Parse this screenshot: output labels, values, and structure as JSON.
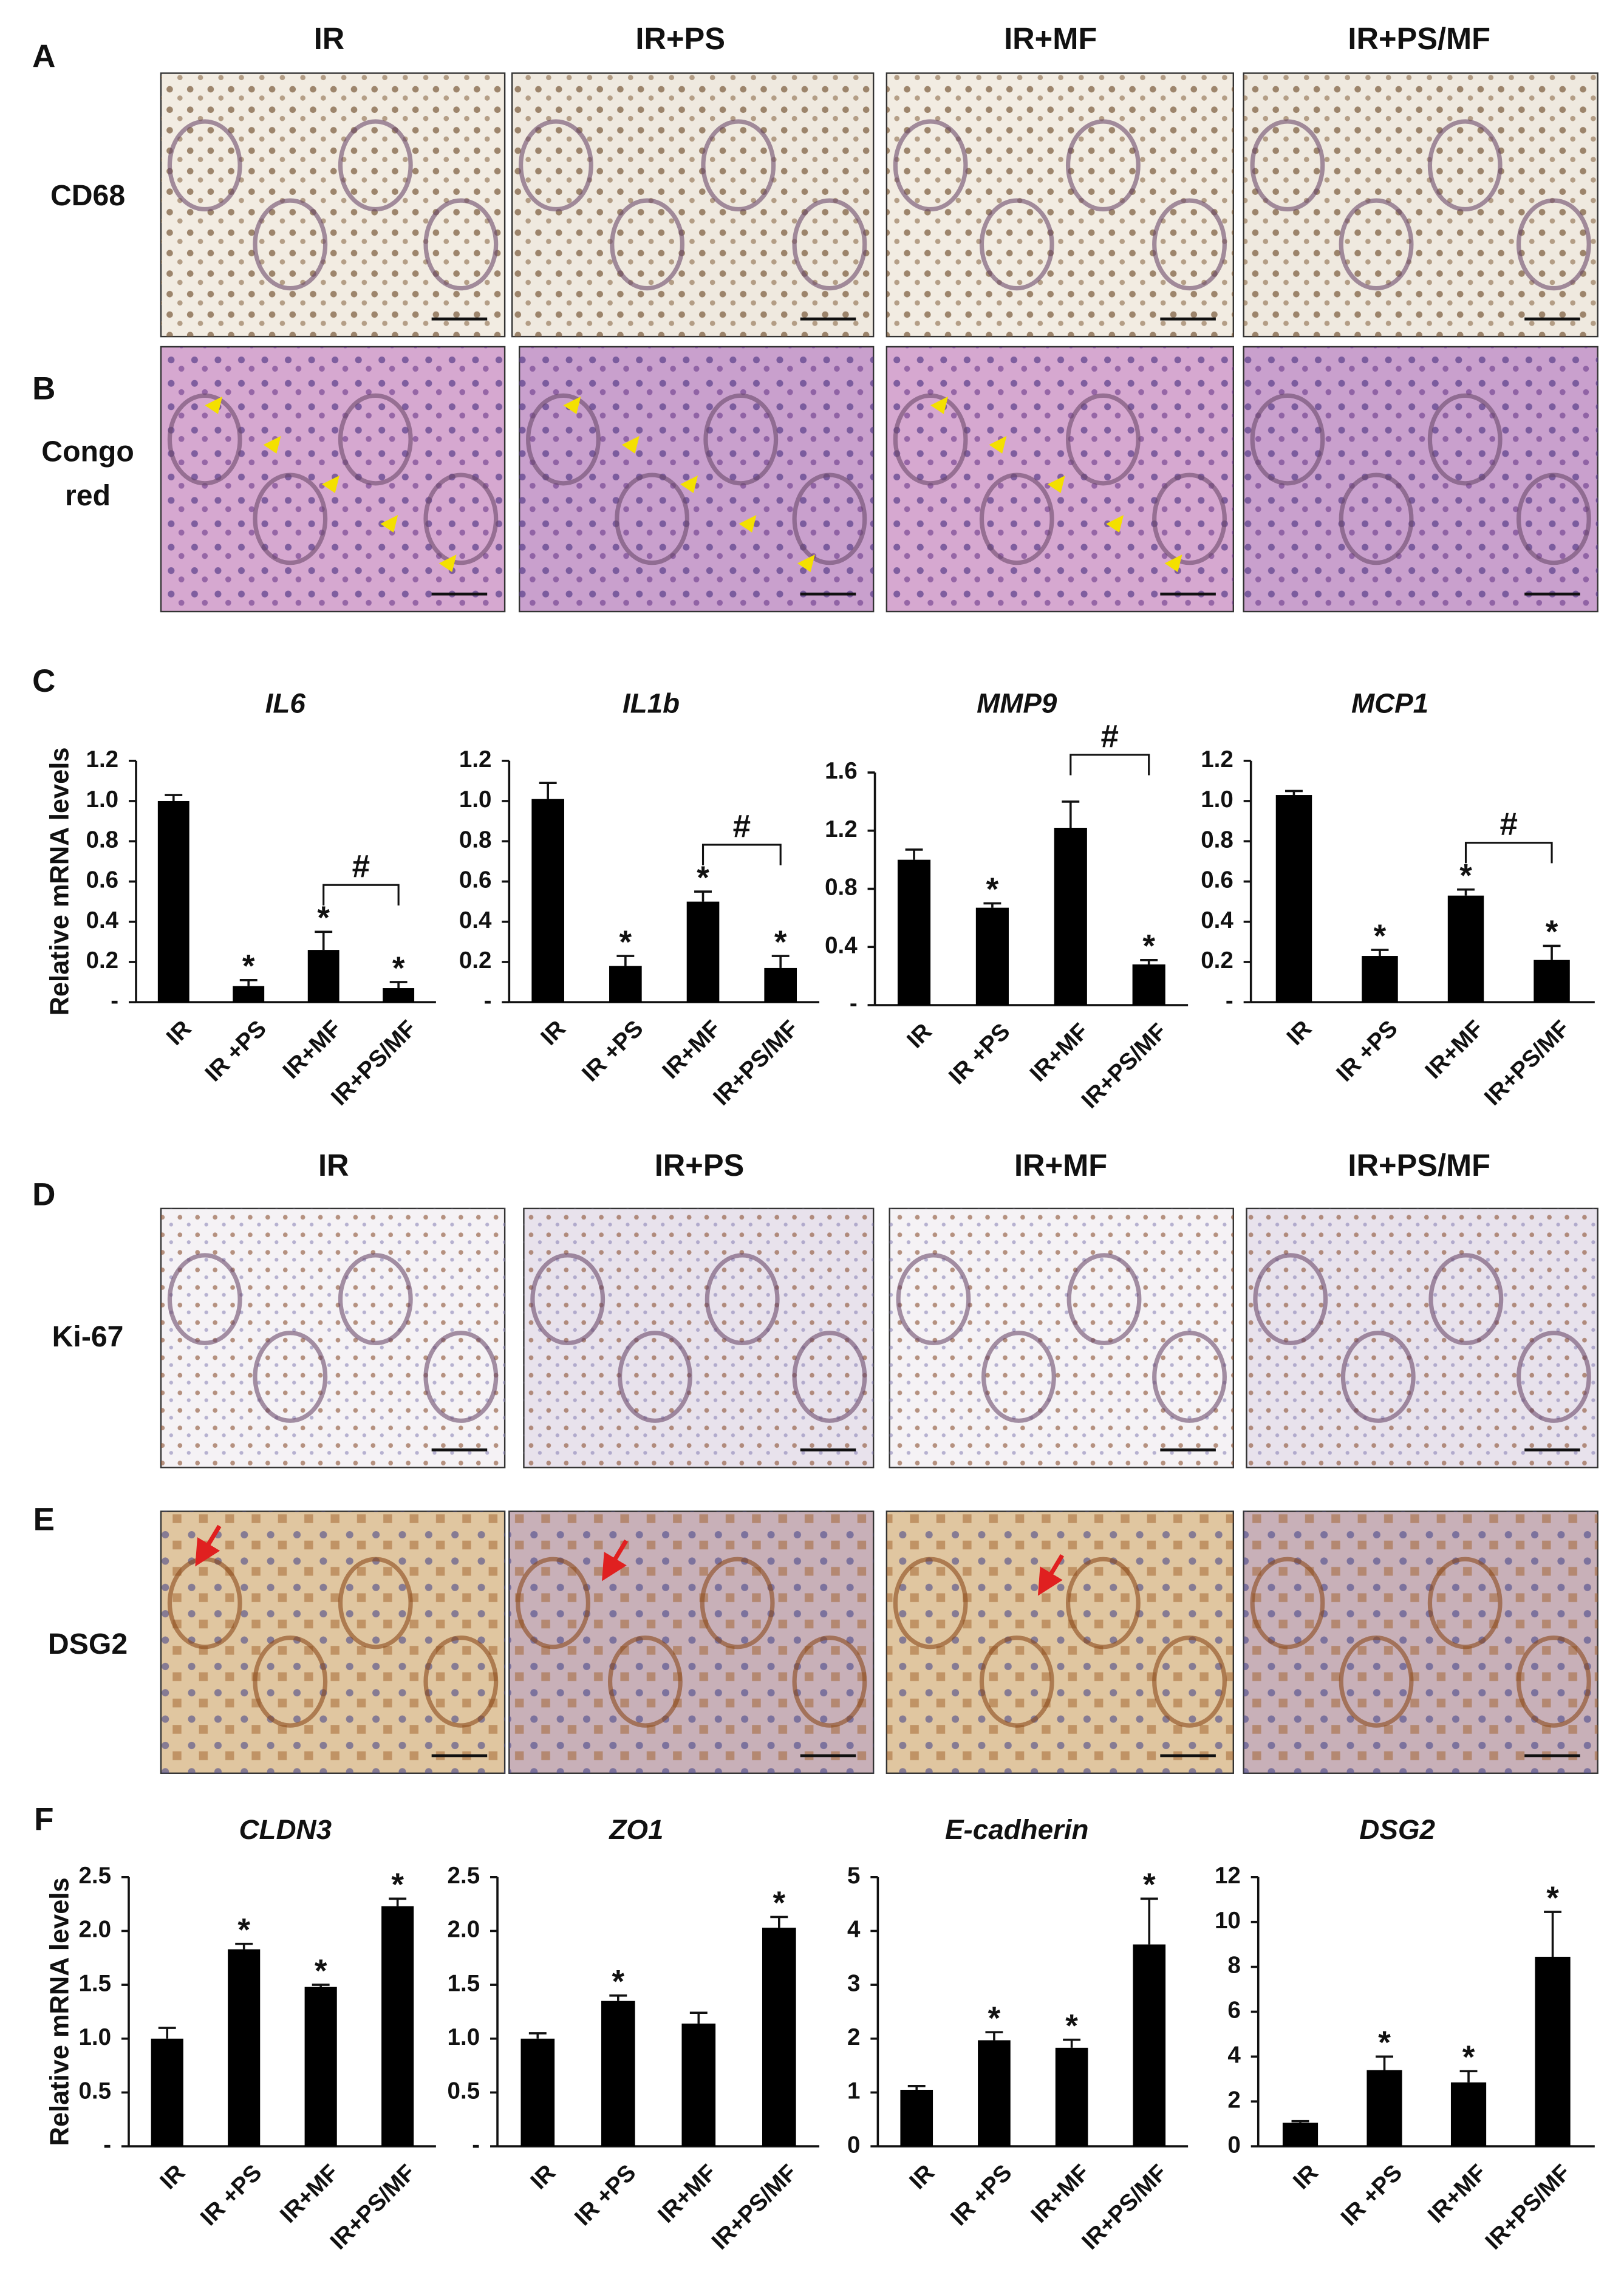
{
  "panels": {
    "A": {
      "label": "A",
      "headers": [
        "IR",
        "IR+PS",
        "IR+MF",
        "IR+PS/MF"
      ],
      "stain": [
        "CD68"
      ]
    },
    "B": {
      "label": "B",
      "stain": [
        "Congo",
        "red"
      ]
    },
    "C": {
      "label": "C"
    },
    "D": {
      "label": "D",
      "headers": [
        "IR",
        "IR+PS",
        "IR+MF",
        "IR+PS/MF"
      ],
      "stain": [
        "Ki-67"
      ]
    },
    "E": {
      "label": "E",
      "stain": [
        "DSG2"
      ]
    },
    "F": {
      "label": "F"
    }
  },
  "chart_data": [
    {
      "type": "bar",
      "title": "IL6",
      "y_label": "Relative mRNA levels",
      "categories": [
        "IR",
        "IR +PS",
        "IR+MF",
        "IR+PS/MF"
      ],
      "values": [
        1.0,
        0.08,
        0.26,
        0.07
      ],
      "errors": [
        0.03,
        0.03,
        0.09,
        0.03
      ],
      "significance": [
        null,
        "*",
        "*",
        "*"
      ],
      "bracket": {
        "label": "#",
        "between": [
          "IR+MF",
          "IR+PS/MF"
        ]
      },
      "color": "#000000",
      "ylim": [
        0,
        1.2
      ],
      "yticks": [
        {
          "value": 0,
          "label": "-"
        },
        0.2,
        0.4,
        0.6,
        0.8,
        {
          "value": 1,
          "label": "1.0"
        },
        1.2
      ]
    },
    {
      "type": "bar",
      "title": "IL1b",
      "categories": [
        "IR",
        "IR +PS",
        "IR+MF",
        "IR+PS/MF"
      ],
      "values": [
        1.01,
        0.18,
        0.5,
        0.17
      ],
      "errors": [
        0.08,
        0.05,
        0.05,
        0.06
      ],
      "significance": [
        null,
        "*",
        "*",
        "*"
      ],
      "bracket": {
        "label": "#",
        "between": [
          "IR+MF",
          "IR+PS/MF"
        ]
      },
      "color": "#000000",
      "ylim": [
        0,
        1.2
      ],
      "yticks": [
        {
          "value": 0,
          "label": "-"
        },
        0.2,
        0.4,
        0.6,
        0.8,
        {
          "value": 1,
          "label": "1.0"
        },
        1.2
      ]
    },
    {
      "type": "bar",
      "title": "MMP9",
      "categories": [
        "IR",
        "IR +PS",
        "IR+MF",
        "IR+PS/MF"
      ],
      "values": [
        1.0,
        0.67,
        1.22,
        0.28
      ],
      "errors": [
        0.07,
        0.03,
        0.18,
        0.03
      ],
      "significance": [
        null,
        "*",
        null,
        "*"
      ],
      "bracket": {
        "label": "#",
        "between": [
          "IR+MF",
          "IR+PS/MF"
        ]
      },
      "color": "#000000",
      "ylim": [
        0,
        1.6
      ],
      "yticks": [
        {
          "value": 0,
          "label": "-"
        },
        0.4,
        0.8,
        1.2,
        1.6
      ]
    },
    {
      "type": "bar",
      "title": "MCP1",
      "categories": [
        "IR",
        "IR +PS",
        "IR+MF",
        "IR+PS/MF"
      ],
      "values": [
        1.03,
        0.23,
        0.53,
        0.21
      ],
      "errors": [
        0.02,
        0.03,
        0.03,
        0.07
      ],
      "significance": [
        null,
        "*",
        "*",
        "*"
      ],
      "bracket": {
        "label": "#",
        "between": [
          "IR+MF",
          "IR+PS/MF"
        ]
      },
      "color": "#000000",
      "ylim": [
        0,
        1.2
      ],
      "yticks": [
        {
          "value": 0,
          "label": "-"
        },
        0.2,
        0.4,
        0.6,
        0.8,
        {
          "value": 1,
          "label": "1.0"
        },
        1.2
      ]
    },
    {
      "type": "bar",
      "title": "CLDN3",
      "y_label": "Relative mRNA levels",
      "categories": [
        "IR",
        "IR +PS",
        "IR+MF",
        "IR+PS/MF"
      ],
      "values": [
        1.0,
        1.83,
        1.48,
        2.23
      ],
      "errors": [
        0.1,
        0.05,
        0.02,
        0.07
      ],
      "significance": [
        null,
        "*",
        "*",
        "*"
      ],
      "color": "#000000",
      "ylim": [
        0,
        2.5
      ],
      "yticks": [
        {
          "value": 0,
          "label": "-"
        },
        0.5,
        {
          "value": 1,
          "label": "1.0"
        },
        1.5,
        {
          "value": 2,
          "label": "2.0"
        },
        2.5
      ]
    },
    {
      "type": "bar",
      "title": "ZO1",
      "categories": [
        "IR",
        "IR +PS",
        "IR+MF",
        "IR+PS/MF"
      ],
      "values": [
        1.0,
        1.35,
        1.14,
        2.03
      ],
      "errors": [
        0.05,
        0.05,
        0.1,
        0.1
      ],
      "significance": [
        null,
        "*",
        null,
        "*"
      ],
      "color": "#000000",
      "ylim": [
        0,
        2.5
      ],
      "yticks": [
        {
          "value": 0,
          "label": "-"
        },
        0.5,
        {
          "value": 1,
          "label": "1.0"
        },
        1.5,
        {
          "value": 2,
          "label": "2.0"
        },
        2.5
      ]
    },
    {
      "type": "bar",
      "title": "E-cadherin",
      "categories": [
        "IR",
        "IR +PS",
        "IR+MF",
        "IR+PS/MF"
      ],
      "values": [
        1.05,
        1.97,
        1.83,
        3.75
      ],
      "errors": [
        0.07,
        0.15,
        0.15,
        0.85
      ],
      "significance": [
        null,
        "*",
        "*",
        "*"
      ],
      "color": "#000000",
      "ylim": [
        0,
        5
      ],
      "yticks": [
        0,
        1,
        2,
        3,
        4,
        5
      ]
    },
    {
      "type": "bar",
      "title": "DSG2",
      "categories": [
        "IR",
        "IR +PS",
        "IR+MF",
        "IR+PS/MF"
      ],
      "values": [
        1.05,
        3.4,
        2.85,
        8.45
      ],
      "errors": [
        0.07,
        0.6,
        0.5,
        2.0
      ],
      "significance": [
        null,
        "*",
        "*",
        "*"
      ],
      "color": "#000000",
      "ylim": [
        0,
        12
      ],
      "yticks": [
        0,
        2,
        4,
        6,
        8,
        10,
        12
      ]
    }
  ]
}
